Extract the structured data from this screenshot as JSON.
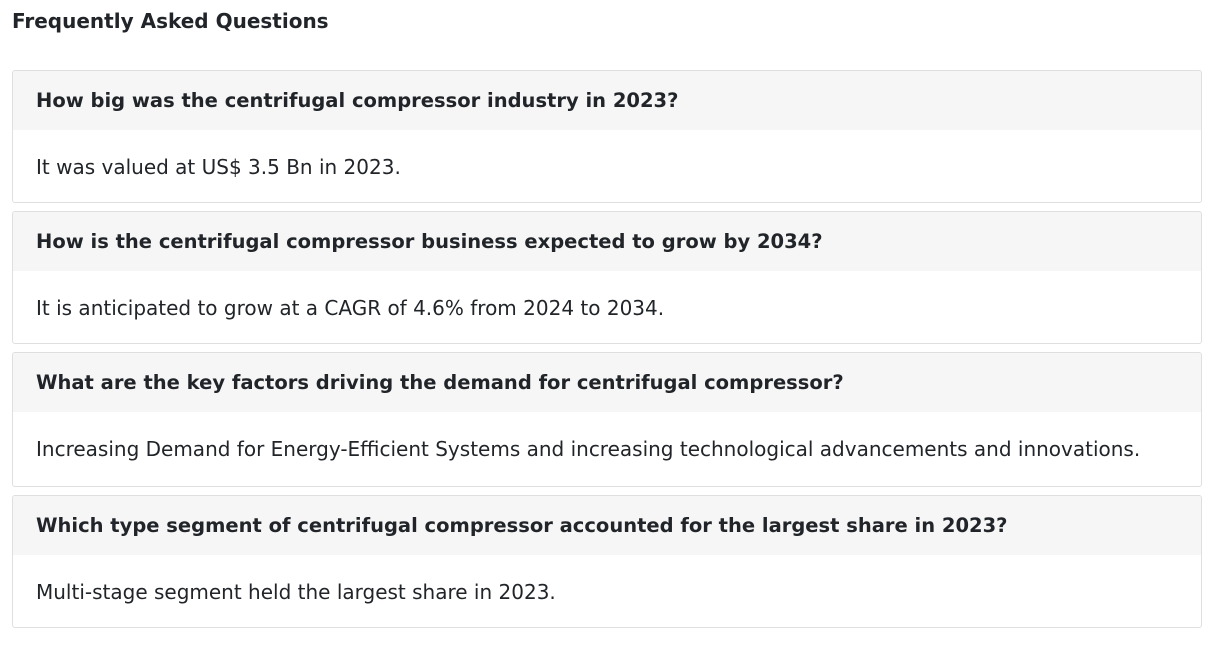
{
  "page": {
    "title": "Frequently Asked Questions"
  },
  "faq": [
    {
      "question": "How big was the centrifugal compressor industry in 2023?",
      "answer": "It was valued at US$ 3.5 Bn in 2023."
    },
    {
      "question": "How is the centrifugal compressor business expected to grow by 2034?",
      "answer": "It is anticipated to grow at a CAGR of 4.6% from 2024 to 2034."
    },
    {
      "question": "What are the key factors driving the demand for centrifugal compressor?",
      "answer": "Increasing Demand for Energy-Efficient Systems and increasing technological advancements and innovations."
    },
    {
      "question": "Which type segment of centrifugal compressor accounted for the largest share in 2023?",
      "answer": "Multi-stage segment held the largest share in 2023."
    }
  ]
}
